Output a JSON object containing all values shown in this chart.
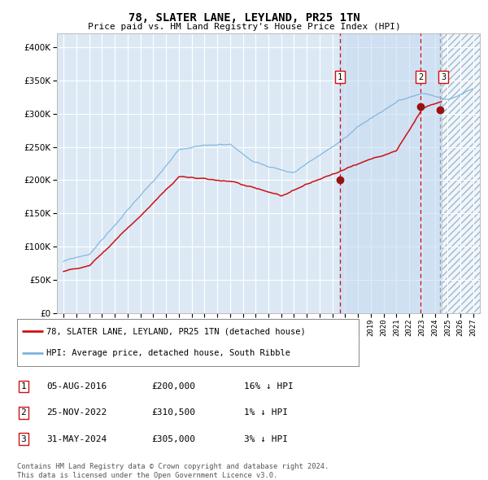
{
  "title": "78, SLATER LANE, LEYLAND, PR25 1TN",
  "subtitle": "Price paid vs. HM Land Registry's House Price Index (HPI)",
  "ylim": [
    0,
    420000
  ],
  "xlim_start": 1994.5,
  "xlim_end": 2027.5,
  "background_color": "#ffffff",
  "plot_bg_color": "#dce9f5",
  "grid_color": "#ffffff",
  "hpi_color": "#7ab3de",
  "price_color": "#cc1111",
  "point_color": "#991111",
  "vline_color_red": "#cc1111",
  "vline_color_gray": "#999999",
  "sale1_date": 2016.59,
  "sale1_price": 200000,
  "sale2_date": 2022.9,
  "sale2_price": 310500,
  "sale3_date": 2024.41,
  "sale3_price": 305000,
  "legend_price_label": "78, SLATER LANE, LEYLAND, PR25 1TN (detached house)",
  "legend_hpi_label": "HPI: Average price, detached house, South Ribble",
  "table_rows": [
    {
      "num": "1",
      "date": "05-AUG-2016",
      "price": "£200,000",
      "hpi": "16% ↓ HPI"
    },
    {
      "num": "2",
      "date": "25-NOV-2022",
      "price": "£310,500",
      "hpi": "1% ↓ HPI"
    },
    {
      "num": "3",
      "date": "31-MAY-2024",
      "price": "£305,000",
      "hpi": "3% ↓ HPI"
    }
  ],
  "footer": "Contains HM Land Registry data © Crown copyright and database right 2024.\nThis data is licensed under the Open Government Licence v3.0.",
  "future_start": 2024.5
}
